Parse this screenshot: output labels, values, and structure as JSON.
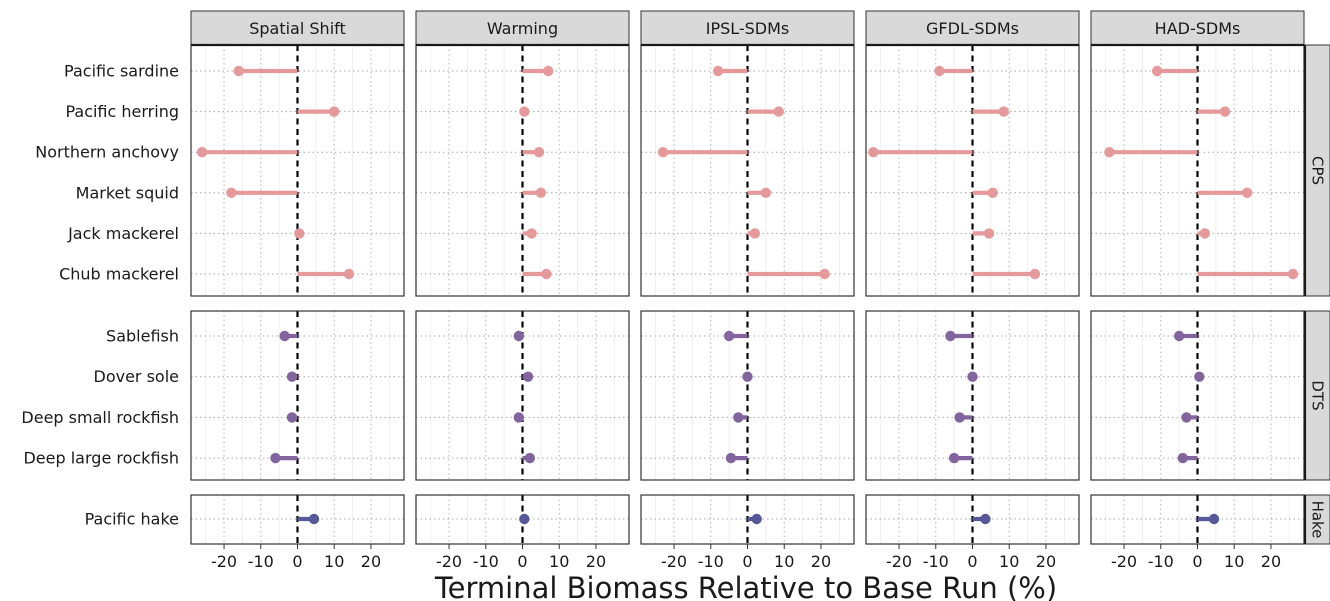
{
  "chart_data": {
    "type": "lollipop",
    "xlabel": "Terminal Biomass Relative to Base Run (%)",
    "x_ticks": [
      -20,
      -10,
      0,
      10,
      20
    ],
    "xlim": [
      -29,
      29
    ],
    "scenarios": [
      "Spatial Shift",
      "Warming",
      "IPSL-SDMs",
      "GFDL-SDMs",
      "HAD-SDMs"
    ],
    "groups": [
      {
        "name": "CPS",
        "color": "#e6999a",
        "species": [
          "Pacific sardine",
          "Pacific herring",
          "Northern anchovy",
          "Market squid",
          "Jack mackerel",
          "Chub mackerel"
        ],
        "values": [
          [
            -16,
            10,
            -26,
            -18,
            0.5,
            14
          ],
          [
            7,
            0.5,
            4.5,
            5,
            2.5,
            6.5
          ],
          [
            -8,
            8.5,
            -23,
            5,
            2,
            21
          ],
          [
            -9,
            8.5,
            -27,
            5.5,
            4.5,
            17
          ],
          [
            -11,
            7.5,
            -24,
            13.5,
            2,
            26
          ]
        ]
      },
      {
        "name": "DTS",
        "color": "#82659e",
        "species": [
          "Sablefish",
          "Dover sole",
          "Deep small rockfish",
          "Deep large rockfish"
        ],
        "values": [
          [
            -3.5,
            -1.5,
            -1.5,
            -6
          ],
          [
            -1,
            1.5,
            -1,
            2
          ],
          [
            -5,
            0,
            -2.5,
            -4.5
          ],
          [
            -6,
            0,
            -3.5,
            -5
          ],
          [
            -5,
            0.5,
            -3,
            -4
          ]
        ]
      },
      {
        "name": "Hake",
        "color": "#55599a",
        "species": [
          "Pacific hake"
        ],
        "values": [
          [
            4.5
          ],
          [
            0.5
          ],
          [
            2.5
          ],
          [
            3.5
          ],
          [
            4.5
          ]
        ]
      }
    ]
  }
}
